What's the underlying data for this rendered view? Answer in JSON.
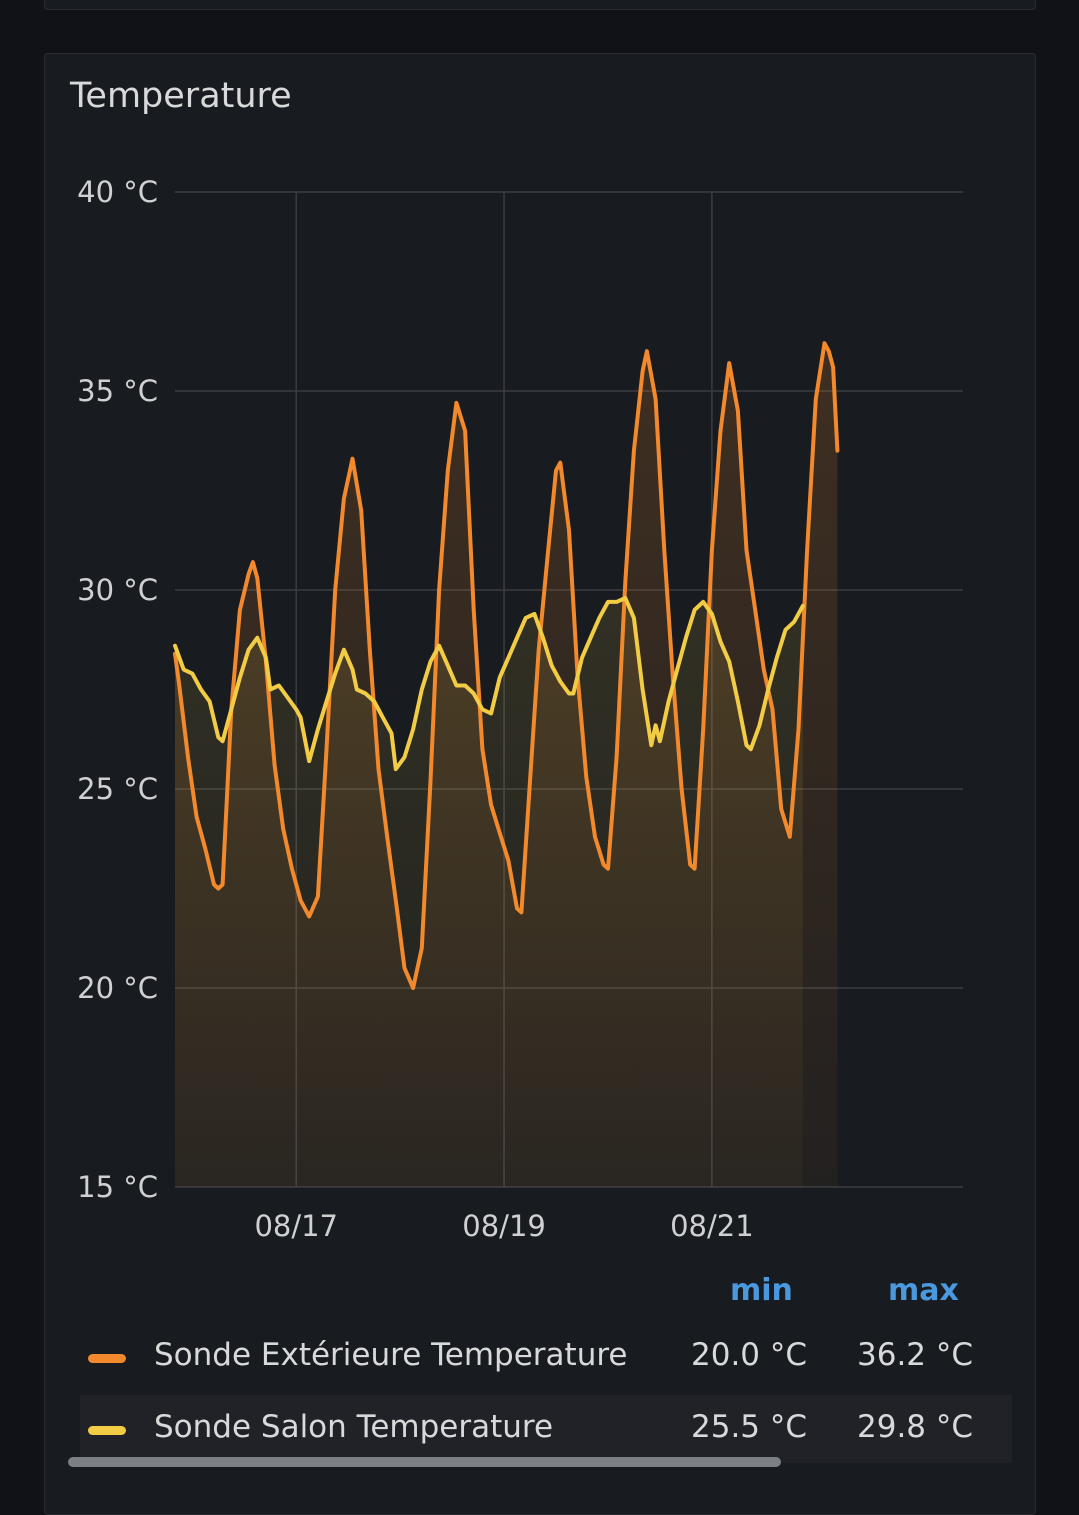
{
  "panel": {
    "title": "Temperature"
  },
  "chart_data": {
    "type": "line",
    "title": "Temperature",
    "x_tick_labels": [
      "08/17",
      "08/19",
      "08/21"
    ],
    "y_tick_labels": [
      "40 °C",
      "35 °C",
      "30 °C",
      "25 °C",
      "20 °C",
      "15 °C"
    ],
    "ylim": [
      15,
      40
    ],
    "y_unit": "°C",
    "x_range": [
      "08/15 20:00",
      "08/23 10:00"
    ],
    "grid": true,
    "legend_position": "bottom",
    "series": [
      {
        "name": "Sonde Extérieure Temperature",
        "color": "#f2892c",
        "fill": true,
        "points": [
          [
            "08/15 20:00",
            28.4
          ],
          [
            "08/15 21:00",
            27.6
          ],
          [
            "08/15 23:00",
            25.8
          ],
          [
            "08/16 01:00",
            24.3
          ],
          [
            "08/16 03:00",
            23.5
          ],
          [
            "08/16 05:00",
            22.6
          ],
          [
            "08/16 06:00",
            22.5
          ],
          [
            "08/16 07:00",
            22.6
          ],
          [
            "08/16 09:00",
            27.0
          ],
          [
            "08/16 11:00",
            29.5
          ],
          [
            "08/16 13:00",
            30.4
          ],
          [
            "08/16 14:00",
            30.7
          ],
          [
            "08/16 15:00",
            30.3
          ],
          [
            "08/16 17:00",
            28.2
          ],
          [
            "08/16 19:00",
            25.6
          ],
          [
            "08/16 21:00",
            24.0
          ],
          [
            "08/16 23:00",
            23.0
          ],
          [
            "08/17 01:00",
            22.2
          ],
          [
            "08/17 03:00",
            21.8
          ],
          [
            "08/17 05:00",
            22.3
          ],
          [
            "08/17 07:00",
            26.0
          ],
          [
            "08/17 09:00",
            30.0
          ],
          [
            "08/17 11:00",
            32.3
          ],
          [
            "08/17 13:00",
            33.3
          ],
          [
            "08/17 15:00",
            32.0
          ],
          [
            "08/17 17:00",
            28.5
          ],
          [
            "08/17 19:00",
            25.5
          ],
          [
            "08/17 21:00",
            23.8
          ],
          [
            "08/17 23:00",
            22.2
          ],
          [
            "08/18 01:00",
            20.5
          ],
          [
            "08/18 03:00",
            20.0
          ],
          [
            "08/18 05:00",
            21.0
          ],
          [
            "08/18 07:00",
            25.2
          ],
          [
            "08/18 09:00",
            30.0
          ],
          [
            "08/18 11:00",
            33.0
          ],
          [
            "08/18 13:00",
            34.7
          ],
          [
            "08/18 15:00",
            34.0
          ],
          [
            "08/18 17:00",
            29.5
          ],
          [
            "08/18 19:00",
            26.0
          ],
          [
            "08/18 21:00",
            24.6
          ],
          [
            "08/18 23:00",
            23.9
          ],
          [
            "08/19 01:00",
            23.2
          ],
          [
            "08/19 03:00",
            22.0
          ],
          [
            "08/19 04:00",
            21.9
          ],
          [
            "08/19 06:00",
            25.2
          ],
          [
            "08/19 08:00",
            28.5
          ],
          [
            "08/19 10:00",
            30.8
          ],
          [
            "08/19 12:00",
            33.0
          ],
          [
            "08/19 13:00",
            33.2
          ],
          [
            "08/19 15:00",
            31.5
          ],
          [
            "08/19 17:00",
            27.8
          ],
          [
            "08/19 19:00",
            25.3
          ],
          [
            "08/19 21:00",
            23.8
          ],
          [
            "08/19 23:00",
            23.1
          ],
          [
            "08/20 00:00",
            23.0
          ],
          [
            "08/20 02:00",
            25.8
          ],
          [
            "08/20 04:00",
            30.2
          ],
          [
            "08/20 06:00",
            33.5
          ],
          [
            "08/20 08:00",
            35.5
          ],
          [
            "08/20 09:00",
            36.0
          ],
          [
            "08/20 11:00",
            34.8
          ],
          [
            "08/20 13:00",
            31.0
          ],
          [
            "08/20 15:00",
            27.8
          ],
          [
            "08/20 17:00",
            25.0
          ],
          [
            "08/20 19:00",
            23.1
          ],
          [
            "08/20 20:00",
            23.0
          ],
          [
            "08/20 22:00",
            26.5
          ],
          [
            "08/21 00:00",
            31.0
          ],
          [
            "08/21 02:00",
            34.0
          ],
          [
            "08/21 04:00",
            35.7
          ],
          [
            "08/21 06:00",
            34.5
          ],
          [
            "08/21 08:00",
            31.0
          ],
          [
            "08/21 10:00",
            29.5
          ],
          [
            "08/21 12:00",
            28.0
          ],
          [
            "08/21 14:00",
            27.0
          ],
          [
            "08/21 16:00",
            24.5
          ],
          [
            "08/21 18:00",
            23.8
          ],
          [
            "08/21 20:00",
            26.5
          ],
          [
            "08/21 22:00",
            31.0
          ],
          [
            "08/22 00:00",
            34.8
          ],
          [
            "08/22 02:00",
            36.2
          ],
          [
            "08/22 03:00",
            36.0
          ],
          [
            "08/22 04:00",
            35.6
          ],
          [
            "08/22 05:00",
            33.5
          ]
        ]
      },
      {
        "name": "Sonde Salon Temperature",
        "color": "#f2cc45",
        "fill": true,
        "points": [
          [
            "08/15 20:00",
            28.6
          ],
          [
            "08/15 22:00",
            28.0
          ],
          [
            "08/16 00:00",
            27.9
          ],
          [
            "08/16 02:00",
            27.5
          ],
          [
            "08/16 04:00",
            27.2
          ],
          [
            "08/16 06:00",
            26.3
          ],
          [
            "08/16 07:00",
            26.2
          ],
          [
            "08/16 09:00",
            27.0
          ],
          [
            "08/16 11:00",
            27.8
          ],
          [
            "08/16 13:00",
            28.5
          ],
          [
            "08/16 15:00",
            28.8
          ],
          [
            "08/16 17:00",
            28.3
          ],
          [
            "08/16 18:00",
            27.5
          ],
          [
            "08/16 20:00",
            27.6
          ],
          [
            "08/16 22:00",
            27.3
          ],
          [
            "08/17 00:00",
            27.0
          ],
          [
            "08/17 01:00",
            26.8
          ],
          [
            "08/17 03:00",
            25.7
          ],
          [
            "08/17 05:00",
            26.5
          ],
          [
            "08/17 07:00",
            27.2
          ],
          [
            "08/17 09:00",
            27.9
          ],
          [
            "08/17 11:00",
            28.5
          ],
          [
            "08/17 13:00",
            28.0
          ],
          [
            "08/17 14:00",
            27.5
          ],
          [
            "08/17 16:00",
            27.4
          ],
          [
            "08/17 18:00",
            27.2
          ],
          [
            "08/17 20:00",
            26.8
          ],
          [
            "08/17 22:00",
            26.4
          ],
          [
            "08/17 23:00",
            25.5
          ],
          [
            "08/18 01:00",
            25.8
          ],
          [
            "08/18 03:00",
            26.5
          ],
          [
            "08/18 05:00",
            27.5
          ],
          [
            "08/18 07:00",
            28.2
          ],
          [
            "08/18 09:00",
            28.6
          ],
          [
            "08/18 11:00",
            28.1
          ],
          [
            "08/18 13:00",
            27.6
          ],
          [
            "08/18 15:00",
            27.6
          ],
          [
            "08/18 17:00",
            27.4
          ],
          [
            "08/18 19:00",
            27.0
          ],
          [
            "08/18 21:00",
            26.9
          ],
          [
            "08/18 23:00",
            27.8
          ],
          [
            "08/19 01:00",
            28.3
          ],
          [
            "08/19 03:00",
            28.8
          ],
          [
            "08/19 05:00",
            29.3
          ],
          [
            "08/19 07:00",
            29.4
          ],
          [
            "08/19 09:00",
            28.8
          ],
          [
            "08/19 11:00",
            28.1
          ],
          [
            "08/19 13:00",
            27.7
          ],
          [
            "08/19 15:00",
            27.4
          ],
          [
            "08/19 16:00",
            27.4
          ],
          [
            "08/19 18:00",
            28.3
          ],
          [
            "08/19 20:00",
            28.8
          ],
          [
            "08/19 22:00",
            29.3
          ],
          [
            "08/20 00:00",
            29.7
          ],
          [
            "08/20 02:00",
            29.7
          ],
          [
            "08/20 04:00",
            29.8
          ],
          [
            "08/20 06:00",
            29.3
          ],
          [
            "08/20 08:00",
            27.5
          ],
          [
            "08/20 10:00",
            26.1
          ],
          [
            "08/20 11:00",
            26.6
          ],
          [
            "08/20 12:00",
            26.2
          ],
          [
            "08/20 14:00",
            27.2
          ],
          [
            "08/20 16:00",
            28.0
          ],
          [
            "08/20 18:00",
            28.8
          ],
          [
            "08/20 20:00",
            29.5
          ],
          [
            "08/20 22:00",
            29.7
          ],
          [
            "08/21 00:00",
            29.4
          ],
          [
            "08/21 02:00",
            28.7
          ],
          [
            "08/21 04:00",
            28.2
          ],
          [
            "08/21 06:00",
            27.2
          ],
          [
            "08/21 08:00",
            26.1
          ],
          [
            "08/21 09:00",
            26.0
          ],
          [
            "08/21 11:00",
            26.6
          ],
          [
            "08/21 13:00",
            27.5
          ],
          [
            "08/21 15:00",
            28.3
          ],
          [
            "08/21 17:00",
            29.0
          ],
          [
            "08/21 19:00",
            29.2
          ],
          [
            "08/21 21:00",
            29.6
          ]
        ]
      }
    ]
  },
  "legend": {
    "headers": {
      "min": "min",
      "max": "max"
    },
    "rows": [
      {
        "name": "Sonde Extérieure Temperature",
        "color": "#f2892c",
        "min": "20.0 °C",
        "max": "36.2 °C"
      },
      {
        "name": "Sonde Salon Temperature",
        "color": "#f2cc45",
        "min": "25.5 °C",
        "max": "29.8 °C"
      }
    ]
  }
}
